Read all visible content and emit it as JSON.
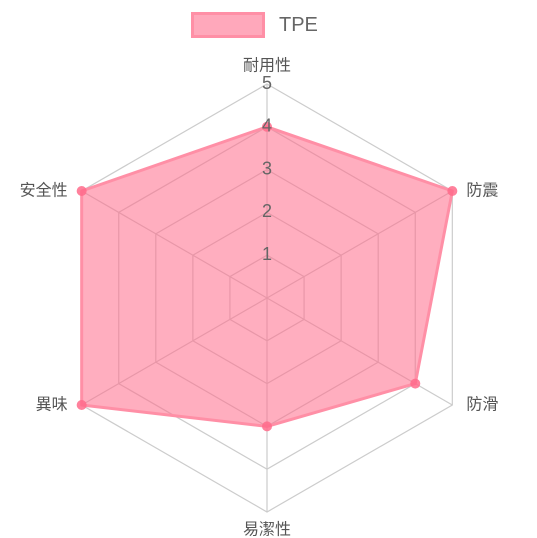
{
  "chart_data": {
    "type": "radar",
    "axes": [
      "耐用性",
      "防震",
      "防滑",
      "易潔性",
      "異味",
      "安全性"
    ],
    "series": [
      {
        "name": "TPE",
        "values": [
          4,
          5,
          4,
          3,
          5,
          5
        ]
      }
    ],
    "r_range": [
      0,
      5
    ],
    "ticks": [
      "1",
      "2",
      "3",
      "4",
      "5"
    ],
    "legend_position": "top",
    "colors": {
      "fill": "#ff6b8b",
      "line": "#ff8fa6",
      "point": "#ff6b8b",
      "grid": "#cccccc"
    }
  }
}
